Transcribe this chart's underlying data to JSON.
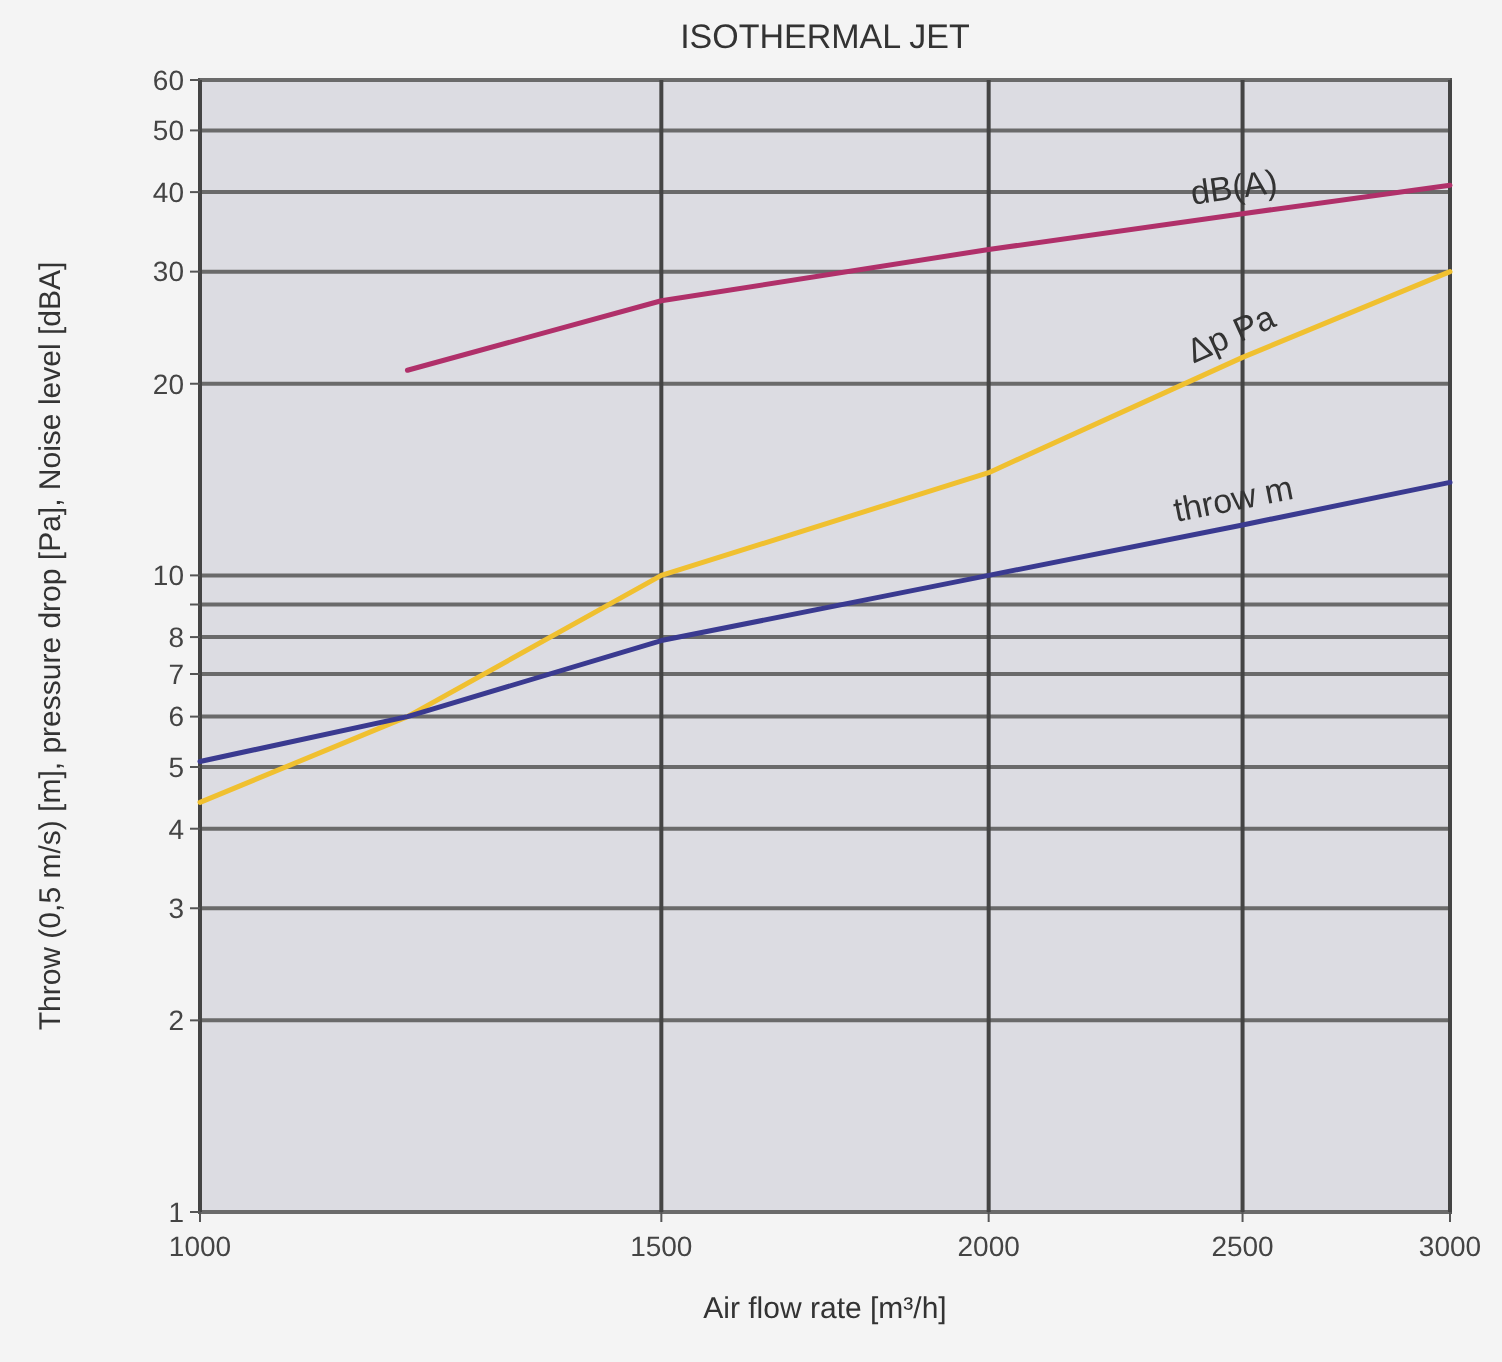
{
  "chart_data": {
    "type": "line",
    "title": "ISOTHERMAL JET",
    "xlabel": "Air flow rate [m³/h]",
    "ylabel": "Throw (0,5 m/s) [m], pressure drop [Pa], Noise level [dBA]",
    "log": "xy",
    "grid": true,
    "marker": "none",
    "line_style": "solid",
    "xlim": [
      1000,
      3000
    ],
    "xticks": [
      1000,
      1500,
      2000,
      2500,
      3000
    ],
    "ylim": [
      1,
      60
    ],
    "yticks": [
      1,
      2,
      3,
      4,
      5,
      6,
      7,
      8,
      {
        "value": 9,
        "label": null
      },
      10,
      20,
      30,
      40,
      50,
      60
    ],
    "series": [
      {
        "name": "dB(A)",
        "color": "#b0306a",
        "x": [
          1200,
          1500,
          2000,
          2500,
          3000
        ],
        "values": [
          21,
          27,
          32.5,
          37,
          41
        ]
      },
      {
        "name": "Δp Pa",
        "color": "#f0c030",
        "x": [
          1000,
          1200,
          1500,
          2000,
          2500,
          3000
        ],
        "values": [
          4.4,
          6,
          10,
          14.5,
          22,
          30
        ]
      },
      {
        "name": "throw m",
        "color": "#3a3a90",
        "x": [
          1000,
          1200,
          1500,
          2000,
          2500,
          3000
        ],
        "values": [
          5.1,
          6,
          7.9,
          10,
          12,
          14
        ]
      }
    ]
  }
}
